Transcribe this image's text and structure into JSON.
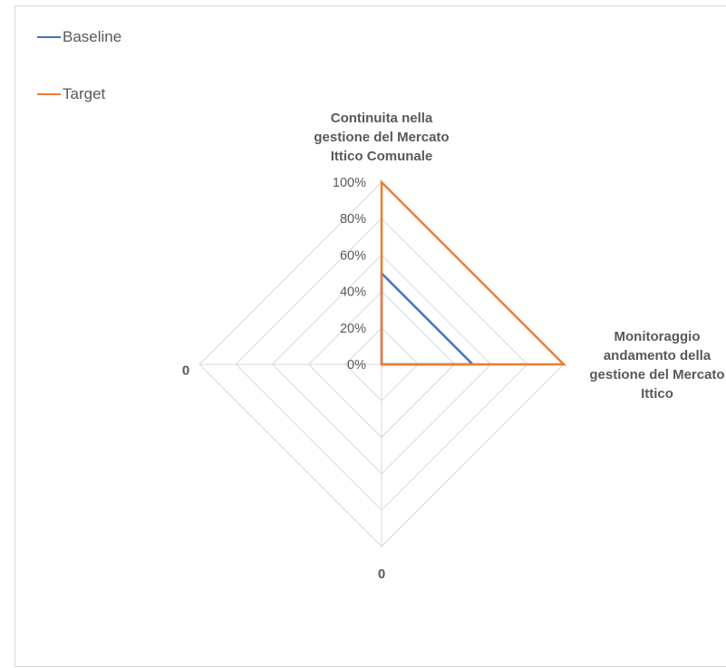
{
  "chart_data": {
    "type": "radar",
    "axes": [
      [
        "Continuita nella",
        "gestione del Mercato",
        "Ittico Comunale"
      ],
      [
        "Monitoraggio",
        "andamento della",
        "gestione del Mercato",
        "Ittico"
      ],
      [
        "0"
      ],
      [
        "0"
      ]
    ],
    "tick_labels": [
      "0%",
      "20%",
      "40%",
      "60%",
      "80%",
      "100%"
    ],
    "rmax": 1.0,
    "series": [
      {
        "name": "Baseline",
        "color": "#4472C4",
        "values": [
          0.5,
          0.5,
          0,
          0
        ]
      },
      {
        "name": "Target",
        "color": "#ED7D31",
        "values": [
          1.0,
          1.0,
          0,
          0
        ]
      }
    ],
    "legend_position": "top-left",
    "grid": true
  }
}
